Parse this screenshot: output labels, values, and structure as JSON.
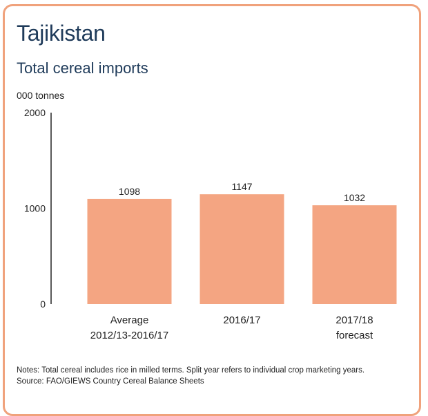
{
  "header": {
    "title": "Tajikistan",
    "subtitle": "Total cereal imports",
    "unit": "000 tonnes"
  },
  "chart_data": {
    "type": "bar",
    "categories": [
      [
        "Average",
        "2012/13-2016/17"
      ],
      [
        "2016/17"
      ],
      [
        "2017/18",
        "forecast"
      ]
    ],
    "values": [
      1098,
      1147,
      1032
    ],
    "data_labels": [
      "1098",
      "1147",
      "1032"
    ],
    "yticks": [
      "2000",
      "1000",
      "0"
    ],
    "ylim": [
      0,
      2000
    ],
    "bar_color": "#f4a582",
    "grid": false
  },
  "notes": {
    "line1": "Notes: Total cereal includes rice in milled terms. Split year refers to individual crop marketing years.",
    "line2": "Source: FAO/GIEWS Country Cereal Balance Sheets"
  }
}
